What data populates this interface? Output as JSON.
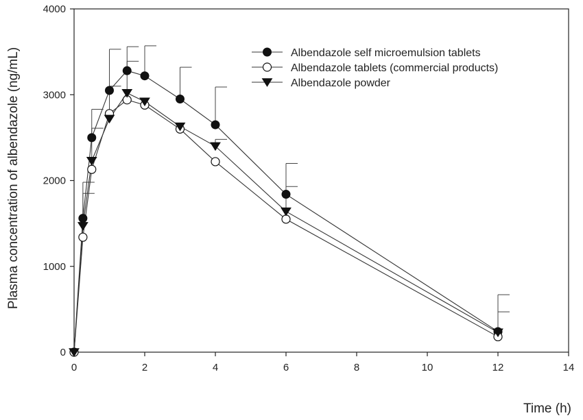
{
  "chart_data": {
    "type": "line",
    "title": "",
    "xlabel": "Time (h)",
    "ylabel": "Plasma concentration of albendazole (ng/mL)",
    "xlim": [
      0,
      14
    ],
    "ylim": [
      0,
      4000
    ],
    "xticks": [
      0,
      2,
      4,
      6,
      8,
      10,
      12,
      14
    ],
    "yticks": [
      0,
      1000,
      2000,
      3000,
      4000
    ],
    "grid": false,
    "legend_position": "top-right",
    "series": [
      {
        "name": "Albendazole self microemulsion tablets",
        "marker": "filled-circle",
        "x": [
          0,
          0.25,
          0.5,
          1,
          1.5,
          2,
          3,
          4,
          6,
          12
        ],
        "y": [
          0,
          1560,
          2500,
          3050,
          3280,
          3220,
          2950,
          2650,
          1840,
          240
        ],
        "error": [
          0,
          420,
          330,
          480,
          280,
          350,
          370,
          440,
          360,
          430
        ]
      },
      {
        "name": "Albendazole tablets (commercial products)",
        "marker": "open-circle",
        "x": [
          0,
          0.25,
          0.5,
          1,
          1.5,
          2,
          3,
          4,
          6,
          12
        ],
        "y": [
          0,
          1340,
          2130,
          2780,
          2940,
          2880,
          2600,
          2220,
          1550,
          180
        ],
        "error": [
          0,
          0,
          0,
          0,
          0,
          0,
          0,
          0,
          0,
          0
        ]
      },
      {
        "name": "Albendazole powder",
        "marker": "filled-triangle-down",
        "x": [
          0,
          0.25,
          0.5,
          1,
          1.5,
          2,
          3,
          4,
          6,
          12
        ],
        "y": [
          0,
          1470,
          2230,
          2720,
          3020,
          2920,
          2630,
          2400,
          1640,
          230
        ],
        "error": [
          0,
          380,
          380,
          380,
          370,
          0,
          0,
          80,
          290,
          240
        ]
      }
    ]
  }
}
